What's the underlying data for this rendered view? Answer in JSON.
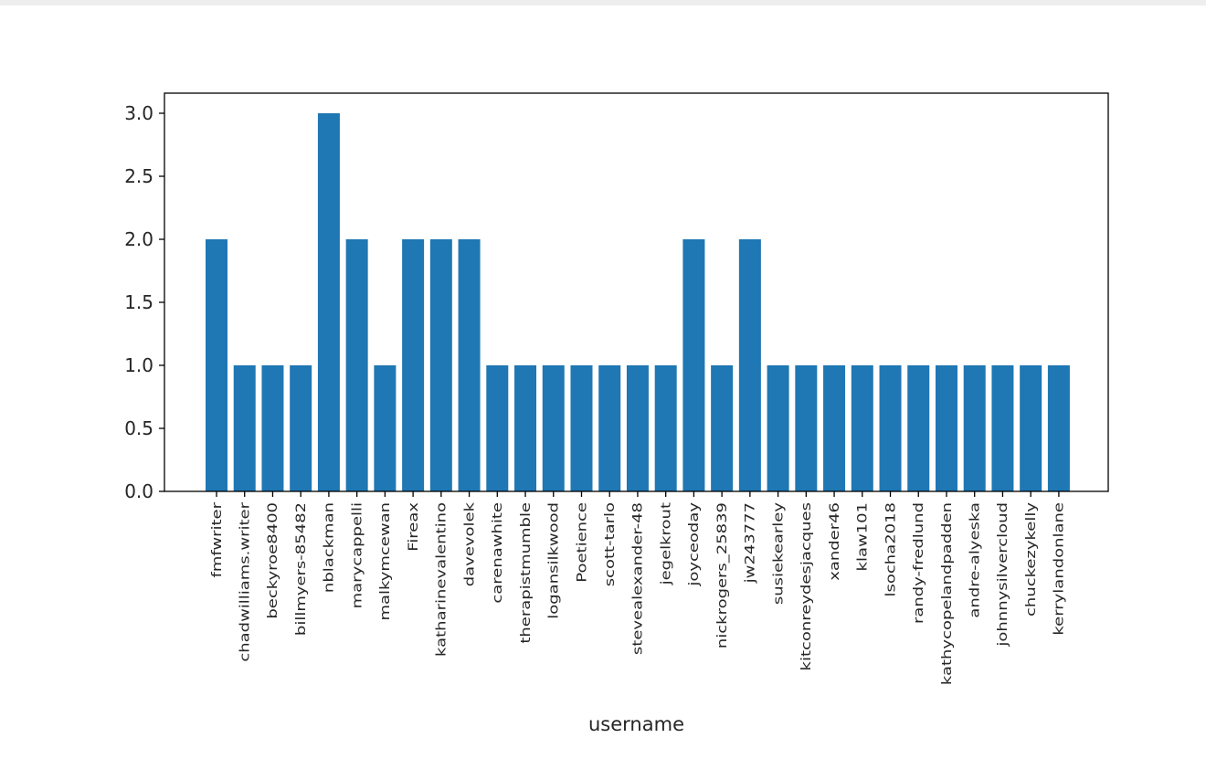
{
  "chart_data": {
    "type": "bar",
    "title": "",
    "xlabel": "username",
    "ylabel": "",
    "ylim": [
      0,
      3.15
    ],
    "yticks": [
      "0.0",
      "0.5",
      "1.0",
      "1.5",
      "2.0",
      "2.5",
      "3.0"
    ],
    "grid": false,
    "bar_color": "#1f77b4",
    "categories": [
      "fmfwriter",
      "chadwilliams.writer",
      "beckyroe8400",
      "billmyers-85482",
      "nblackman",
      "marycappelli",
      "malkymcewan",
      "Fireax",
      "katharinevalentino",
      "davevolek",
      "carenawhite",
      "therapistmumble",
      "logansilkwood",
      "Poetience",
      "scott-tarlo",
      "stevealexander-48",
      "jegelkrout",
      "joyceoday",
      "nickrogers_25839",
      "jw243777",
      "susiekearley",
      "kitconreydesjacques",
      "xander46",
      "klaw101",
      "lsocha2018",
      "randy-fredlund",
      "kathycopelandpadden",
      "andre-alyeska",
      "johnnysilvercloud",
      "chuckezykelly",
      "kerrylandonlane"
    ],
    "values": [
      2,
      1,
      1,
      1,
      3,
      2,
      1,
      2,
      2,
      2,
      1,
      1,
      1,
      1,
      1,
      1,
      1,
      2,
      1,
      2,
      1,
      1,
      1,
      1,
      1,
      1,
      1,
      1,
      1,
      1,
      1
    ]
  }
}
